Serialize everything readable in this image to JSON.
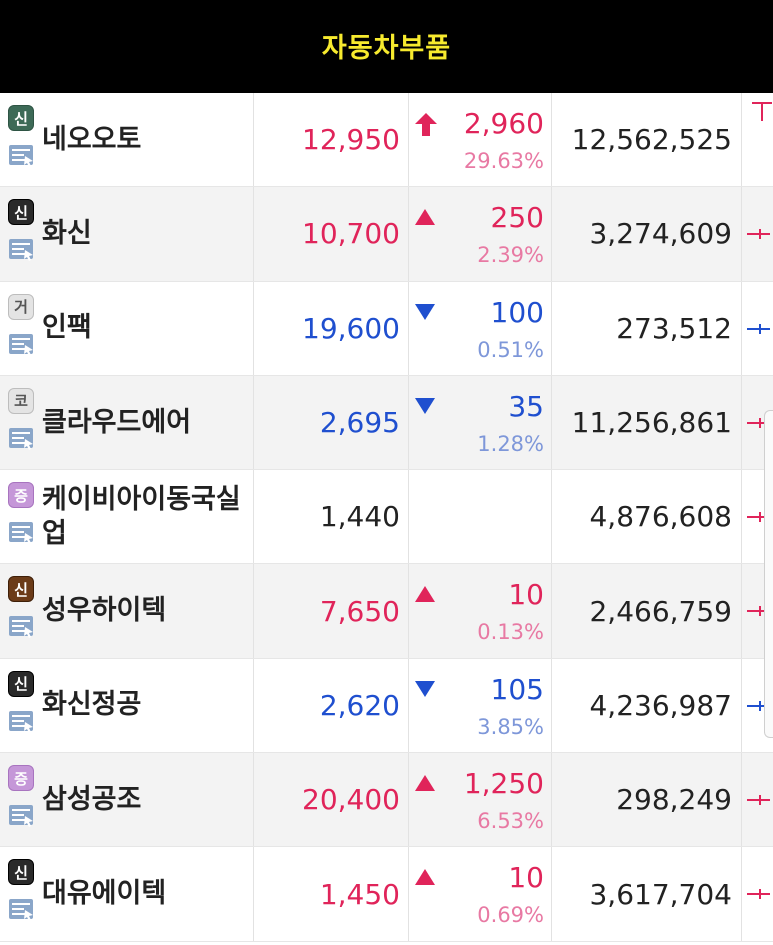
{
  "header": {
    "title": "자동차부품"
  },
  "colors": {
    "up": "#e0245a",
    "up_pct": "#e879a3",
    "down": "#1f4fcf",
    "down_pct": "#7e97d9",
    "neutral": "#222222",
    "header_bg": "#000000",
    "header_text": "#f7ea2e"
  },
  "rows": [
    {
      "badge": "신",
      "badge_style": "dark-green",
      "name": "네오오토",
      "price": "12,950",
      "direction": "limit-up",
      "change": "2,960",
      "pct": "29.63%",
      "volume": "12,562,525",
      "candle": "limit-up"
    },
    {
      "badge": "신",
      "badge_style": "dark",
      "name": "화신",
      "price": "10,700",
      "direction": "up",
      "change": "250",
      "pct": "2.39%",
      "volume": "3,274,609",
      "candle": "up"
    },
    {
      "badge": "거",
      "badge_style": "gray",
      "name": "인팩",
      "price": "19,600",
      "direction": "down",
      "change": "100",
      "pct": "0.51%",
      "volume": "273,512",
      "candle": "down"
    },
    {
      "badge": "코",
      "badge_style": "gray",
      "name": "클라우드에어",
      "price": "2,695",
      "direction": "down",
      "change": "35",
      "pct": "1.28%",
      "volume": "11,256,861",
      "candle": "up"
    },
    {
      "badge": "증",
      "badge_style": "purple",
      "name": "케이비아이동국실업",
      "price": "1,440",
      "direction": "none",
      "change": "",
      "pct": "",
      "volume": "4,876,608",
      "candle": "up"
    },
    {
      "badge": "신",
      "badge_style": "brown",
      "name": "성우하이텍",
      "price": "7,650",
      "direction": "up",
      "change": "10",
      "pct": "0.13%",
      "volume": "2,466,759",
      "candle": "up"
    },
    {
      "badge": "신",
      "badge_style": "dark",
      "name": "화신정공",
      "price": "2,620",
      "direction": "down",
      "change": "105",
      "pct": "3.85%",
      "volume": "4,236,987",
      "candle": "down"
    },
    {
      "badge": "증",
      "badge_style": "purple",
      "name": "삼성공조",
      "price": "20,400",
      "direction": "up",
      "change": "1,250",
      "pct": "6.53%",
      "volume": "298,249",
      "candle": "up"
    },
    {
      "badge": "신",
      "badge_style": "dark",
      "name": "대유에이텍",
      "price": "1,450",
      "direction": "up",
      "change": "10",
      "pct": "0.69%",
      "volume": "3,617,704",
      "candle": "up"
    }
  ]
}
